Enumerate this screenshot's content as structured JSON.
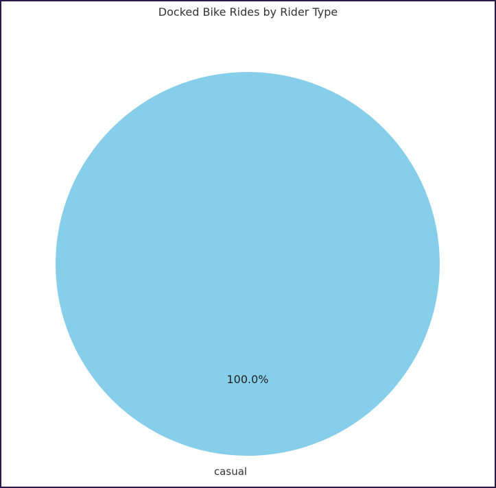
{
  "chart_data": {
    "type": "pie",
    "title": "Docked Bike Rides by Rider Type",
    "categories": [
      "casual"
    ],
    "values": [
      100.0
    ],
    "value_labels": [
      "100.0%"
    ],
    "colors": [
      "#87ceeb"
    ],
    "legend": "none"
  }
}
